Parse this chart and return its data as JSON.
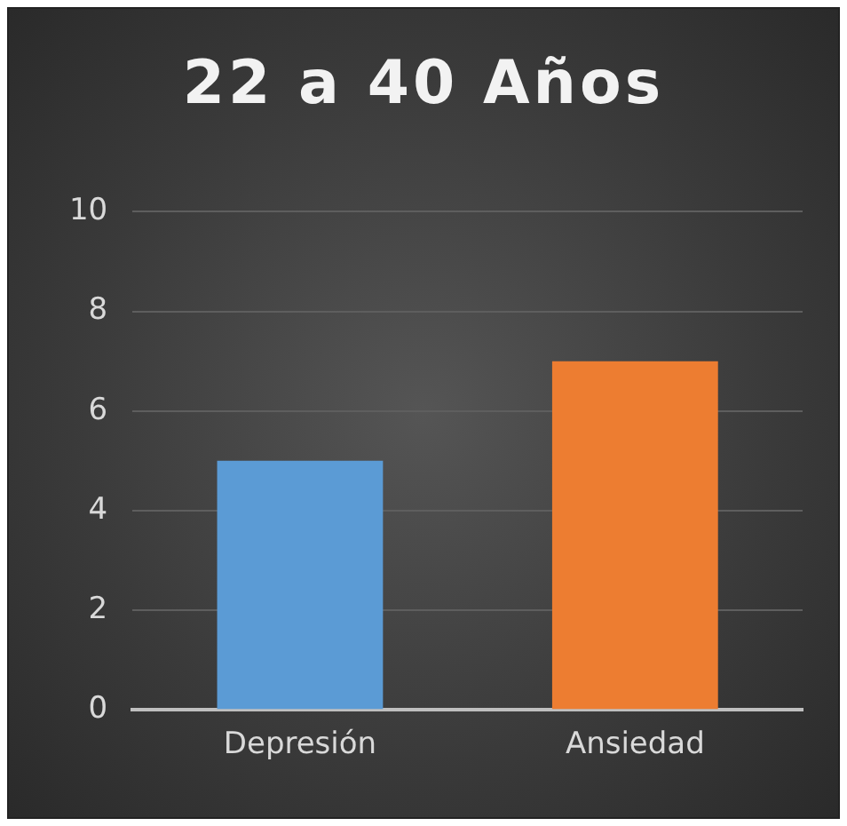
{
  "chart_data": {
    "type": "bar",
    "title": "22 a 40 Años",
    "categories": [
      "Depresión",
      "Ansiedad"
    ],
    "values": [
      5,
      7
    ],
    "colors": [
      "#5b9bd5",
      "#ed7d31"
    ],
    "ylim": [
      0,
      10
    ],
    "yticks": [
      0,
      2,
      4,
      6,
      8,
      10
    ],
    "grid": "y",
    "legend": false
  }
}
